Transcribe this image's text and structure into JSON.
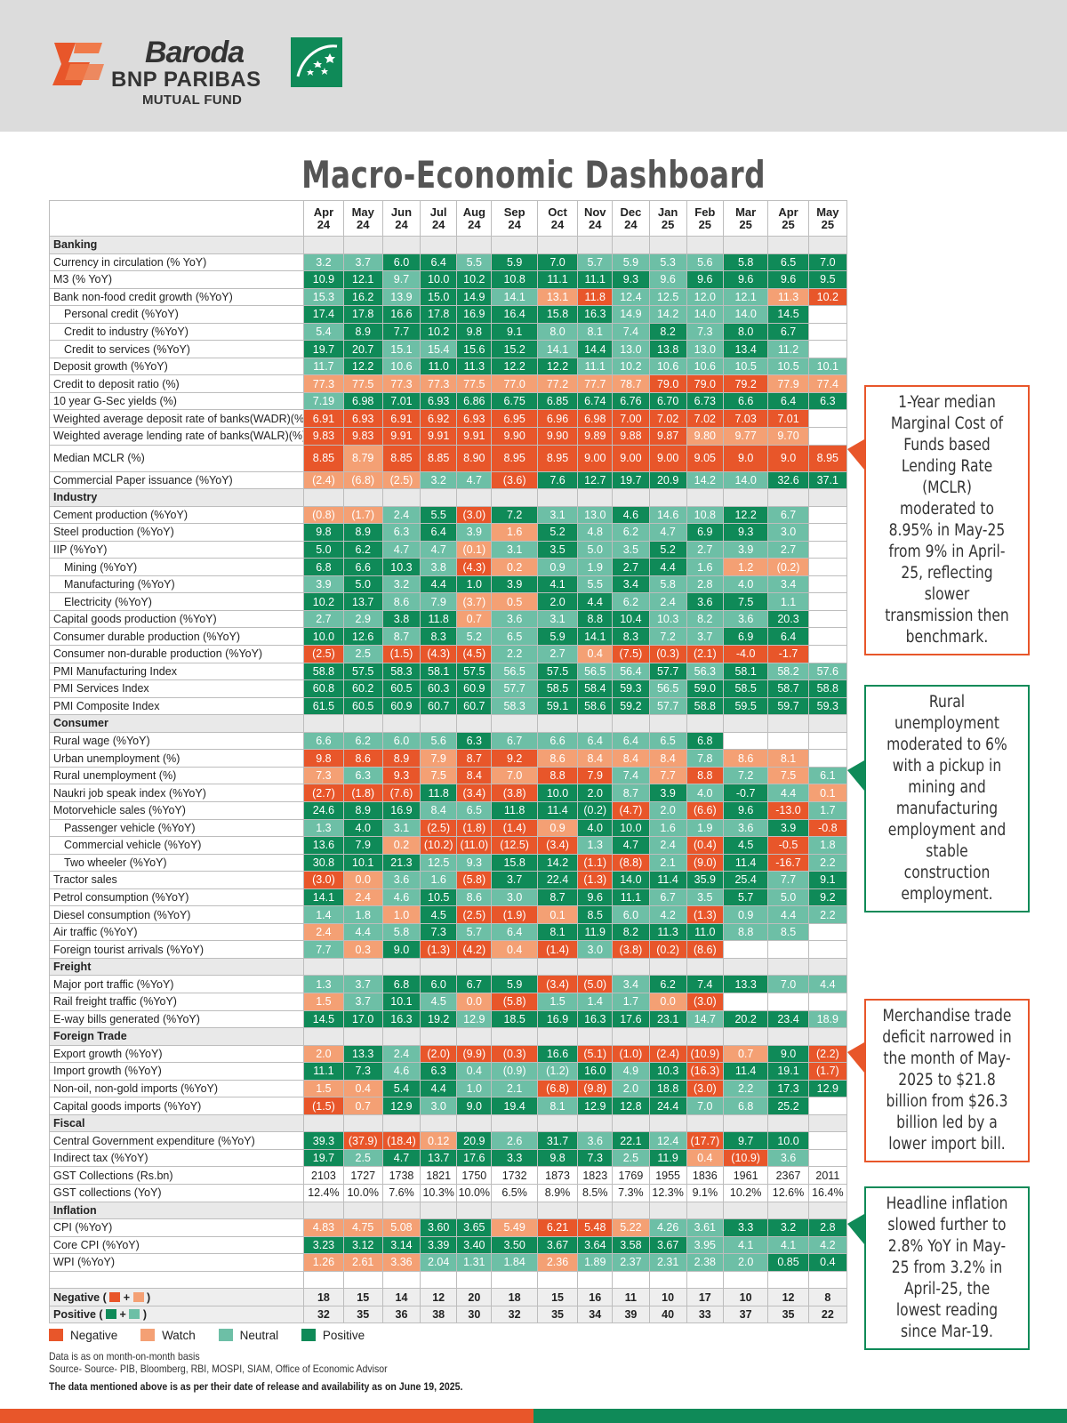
{
  "brand": {
    "line1": "Baroda",
    "line2": "BNP PARIBAS",
    "line3": "MUTUAL FUND"
  },
  "title": "Macro-Economic Dashboard",
  "colors": {
    "negative": "#e8562a",
    "watch": "#f4a074",
    "neutral": "#6dbfa6",
    "positive": "#0f8a58"
  },
  "months": [
    [
      "Apr",
      "24"
    ],
    [
      "May",
      "24"
    ],
    [
      "Jun",
      "24"
    ],
    [
      "Jul",
      "24"
    ],
    [
      "Aug",
      "24"
    ],
    [
      "Sep",
      "24"
    ],
    [
      "Oct",
      "24"
    ],
    [
      "Nov",
      "24"
    ],
    [
      "Dec",
      "24"
    ],
    [
      "Jan",
      "25"
    ],
    [
      "Feb",
      "25"
    ],
    [
      "Mar",
      "25"
    ],
    [
      "Apr",
      "25"
    ],
    [
      "May",
      "25"
    ]
  ],
  "rows": [
    {
      "s": "Banking"
    },
    {
      "l": "Currency in circulation (% YoY)",
      "v": [
        "3.2",
        "3.7",
        "6.0",
        "6.4",
        "5.5",
        "5.9",
        "7.0",
        "5.7",
        "5.9",
        "5.3",
        "5.6",
        "5.8",
        "6.5",
        "7.0"
      ],
      "c": "uuppuppuuuuppp"
    },
    {
      "l": "M3 (% YoY)",
      "v": [
        "10.9",
        "12.1",
        "9.7",
        "10.0",
        "10.2",
        "10.8",
        "11.1",
        "11.1",
        "9.3",
        "9.6",
        "9.6",
        "9.6",
        "9.6",
        "9.5"
      ],
      "c": "ppuppppppupppp"
    },
    {
      "l": "Bank non-food credit growth (%YoY)",
      "v": [
        "15.3",
        "16.2",
        "13.9",
        "15.0",
        "14.9",
        "14.1",
        "13.1",
        "11.8",
        "12.4",
        "12.5",
        "12.0",
        "12.1",
        "11.3",
        "10.2"
      ],
      "c": "upuppuwnuuuuwn"
    },
    {
      "l": "Personal credit (%YoY)",
      "i": 1,
      "v": [
        "17.4",
        "17.8",
        "16.6",
        "17.8",
        "16.9",
        "16.4",
        "15.8",
        "16.3",
        "14.9",
        "14.2",
        "14.0",
        "14.0",
        "14.5",
        ""
      ],
      "c": "ppppppppuuuupz"
    },
    {
      "l": "Credit to industry (%YoY)",
      "i": 1,
      "v": [
        "5.4",
        "8.9",
        "7.7",
        "10.2",
        "9.8",
        "9.1",
        "8.0",
        "8.1",
        "7.4",
        "8.2",
        "7.3",
        "8.0",
        "6.7",
        ""
      ],
      "c": "upppppuuupuppz"
    },
    {
      "l": "Credit to services (%YoY)",
      "i": 1,
      "v": [
        "19.7",
        "20.7",
        "15.1",
        "15.4",
        "15.6",
        "15.2",
        "14.1",
        "14.4",
        "13.0",
        "13.8",
        "13.0",
        "13.4",
        "11.2",
        ""
      ],
      "c": "ppuuppupupupuz"
    },
    {
      "l": "Deposit growth (%YoY)",
      "v": [
        "11.7",
        "12.2",
        "10.6",
        "11.0",
        "11.3",
        "12.2",
        "12.2",
        "11.1",
        "10.2",
        "10.6",
        "10.6",
        "10.5",
        "10.5",
        "10.1"
      ],
      "c": "upuppppuuuuuuu"
    },
    {
      "l": "Credit to deposit ratio (%)",
      "v": [
        "77.3",
        "77.5",
        "77.3",
        "77.3",
        "77.5",
        "77.0",
        "77.2",
        "77.7",
        "78.7",
        "79.0",
        "79.0",
        "79.2",
        "77.9",
        "77.4"
      ],
      "c": "wwwwwwwwwnnnww"
    },
    {
      "l": "10 year G-Sec yields (%)",
      "v": [
        "7.19",
        "6.98",
        "7.01",
        "6.93",
        "6.86",
        "6.75",
        "6.85",
        "6.74",
        "6.76",
        "6.70",
        "6.73",
        "6.6",
        "6.4",
        "6.3"
      ],
      "c": "uppppppppppppp"
    },
    {
      "l": "Weighted average deposit rate of banks(WADR)(%)",
      "v": [
        "6.91",
        "6.93",
        "6.91",
        "6.92",
        "6.93",
        "6.95",
        "6.96",
        "6.98",
        "7.00",
        "7.02",
        "7.02",
        "7.03",
        "7.01",
        ""
      ],
      "c": "nnnnnnnnnnnnnz"
    },
    {
      "l": "Weighted average lending rate of banks(WALR)(%)",
      "v": [
        "9.83",
        "9.83",
        "9.91",
        "9.91",
        "9.91",
        "9.90",
        "9.90",
        "9.89",
        "9.88",
        "9.87",
        "9.80",
        "9.77",
        "9.70",
        ""
      ],
      "c": "nnnnnnnnnnwwwz"
    },
    {
      "l": "Median MCLR (%)",
      "t": 1,
      "v": [
        "8.85",
        "8.79",
        "8.85",
        "8.85",
        "8.90",
        "8.95",
        "8.95",
        "9.00",
        "9.00",
        "9.00",
        "9.05",
        "9.0",
        "9.0",
        "8.95"
      ],
      "c": "nwnnnnnnnnnnnn"
    },
    {
      "l": "Commercial Paper issuance (%YoY)",
      "v": [
        "(2.4)",
        "(6.8)",
        "(2.5)",
        "3.2",
        "4.7",
        "(3.6)",
        "7.6",
        "12.7",
        "19.7",
        "20.9",
        "14.2",
        "14.0",
        "32.6",
        "37.1"
      ],
      "c": "wwwuunppppuupp"
    },
    {
      "s": "Industry"
    },
    {
      "l": "Cement production (%YoY)",
      "v": [
        "(0.8)",
        "(1.7)",
        "2.4",
        "5.5",
        "(3.0)",
        "7.2",
        "3.1",
        "13.0",
        "4.6",
        "14.6",
        "10.8",
        "12.2",
        "6.7",
        ""
      ],
      "c": "wwupnpuupuupuz"
    },
    {
      "l": "Steel production (%YoY)",
      "v": [
        "9.8",
        "8.9",
        "6.3",
        "6.4",
        "3.9",
        "1.6",
        "5.2",
        "4.8",
        "6.2",
        "4.7",
        "6.9",
        "9.3",
        "3.0",
        ""
      ],
      "c": "ppupuwpuuuppuz"
    },
    {
      "l": "IIP (%YoY)",
      "v": [
        "5.0",
        "6.2",
        "4.7",
        "4.7",
        "(0.1)",
        "3.1",
        "3.5",
        "5.0",
        "3.5",
        "5.2",
        "2.7",
        "3.9",
        "2.7",
        ""
      ],
      "c": "ppuuwupuupuuuz"
    },
    {
      "l": "Mining (%YoY)",
      "i": 1,
      "v": [
        "6.8",
        "6.6",
        "10.3",
        "3.8",
        "(4.3)",
        "0.2",
        "0.9",
        "1.9",
        "2.7",
        "4.4",
        "1.6",
        "1.2",
        "(0.2)",
        ""
      ],
      "c": "pppunwuuppuwwz"
    },
    {
      "l": "Manufacturing (%YoY)",
      "i": 1,
      "v": [
        "3.9",
        "5.0",
        "3.2",
        "4.4",
        "1.0",
        "3.9",
        "4.1",
        "5.5",
        "3.4",
        "5.8",
        "2.8",
        "4.0",
        "3.4",
        ""
      ],
      "c": "upuppppupuuuuz"
    },
    {
      "l": "Electricity (%YoY)",
      "i": 1,
      "v": [
        "10.2",
        "13.7",
        "8.6",
        "7.9",
        "(3.7)",
        "0.5",
        "2.0",
        "4.4",
        "6.2",
        "2.4",
        "3.6",
        "7.5",
        "1.1",
        ""
      ],
      "c": "ppuuwwppuuppuz"
    },
    {
      "l": "Capital goods production (%YoY)",
      "v": [
        "2.7",
        "2.9",
        "3.8",
        "11.8",
        "0.7",
        "3.6",
        "3.1",
        "8.8",
        "10.4",
        "10.3",
        "8.2",
        "3.6",
        "20.3",
        ""
      ],
      "c": "uuppwuuppuuupz"
    },
    {
      "l": "Consumer durable production (%YoY)",
      "v": [
        "10.0",
        "12.6",
        "8.7",
        "8.3",
        "5.2",
        "6.5",
        "5.9",
        "14.1",
        "8.3",
        "7.2",
        "3.7",
        "6.9",
        "6.4",
        ""
      ],
      "c": "ppupuupppuuppz"
    },
    {
      "l": "Consumer non-durable production (%YoY)",
      "v": [
        "(2.5)",
        "2.5",
        "(1.5)",
        "(4.3)",
        "(4.5)",
        "2.2",
        "2.7",
        "0.4",
        "(7.5)",
        "(0.3)",
        "(2.1)",
        "-4.0",
        "-1.7",
        ""
      ],
      "c": "nunnnuuwnnnnnz"
    },
    {
      "l": "PMI Manufacturing Index",
      "v": [
        "58.8",
        "57.5",
        "58.3",
        "58.1",
        "57.5",
        "56.5",
        "57.5",
        "56.5",
        "56.4",
        "57.7",
        "56.3",
        "58.1",
        "58.2",
        "57.6"
      ],
      "c": "pppppupuupupuu"
    },
    {
      "l": "PMI Services Index",
      "v": [
        "60.8",
        "60.2",
        "60.5",
        "60.3",
        "60.9",
        "57.7",
        "58.5",
        "58.4",
        "59.3",
        "56.5",
        "59.0",
        "58.5",
        "58.7",
        "58.8"
      ],
      "c": "pppppupppupppp"
    },
    {
      "l": "PMI Composite Index",
      "v": [
        "61.5",
        "60.5",
        "60.9",
        "60.7",
        "60.7",
        "58.3",
        "59.1",
        "58.6",
        "59.2",
        "57.7",
        "58.8",
        "59.5",
        "59.7",
        "59.3"
      ],
      "c": "pppppupppupppp"
    },
    {
      "s": "Consumer"
    },
    {
      "l": "Rural wage (%YoY)",
      "v": [
        "6.6",
        "6.2",
        "6.0",
        "5.6",
        "6.3",
        "6.7",
        "6.6",
        "6.4",
        "6.4",
        "6.5",
        "6.8",
        "",
        "",
        ""
      ],
      "c": "uuuupuuuuupzzz"
    },
    {
      "l": "Urban unemployment (%)",
      "v": [
        "9.8",
        "8.6",
        "8.9",
        "7.9",
        "8.7",
        "9.2",
        "8.6",
        "8.4",
        "8.4",
        "8.4",
        "7.8",
        "8.6",
        "8.1",
        ""
      ],
      "c": "nnnwnnwwwwuwwz"
    },
    {
      "l": "Rural unemployment (%)",
      "v": [
        "7.3",
        "6.3",
        "9.3",
        "7.5",
        "8.4",
        "7.0",
        "8.8",
        "7.9",
        "7.4",
        "7.7",
        "8.8",
        "7.2",
        "7.5",
        "6.1"
      ],
      "c": "wunwnwnnuwnuwu"
    },
    {
      "l": "Naukri job speak index (%YoY)",
      "v": [
        "(2.7)",
        "(1.8)",
        "(7.6)",
        "11.8",
        "(3.4)",
        "(3.8)",
        "10.0",
        "2.0",
        "8.7",
        "3.9",
        "4.0",
        "-0.7",
        "4.4",
        "0.1"
      ],
      "c": "nnnpnnppupupuw"
    },
    {
      "l": "Motorvehicle sales (%YoY)",
      "v": [
        "24.6",
        "8.9",
        "16.9",
        "8.4",
        "6.5",
        "11.8",
        "11.4",
        "(0.2)",
        "(4.7)",
        "2.0",
        "(6.6)",
        "9.6",
        "-13.0",
        "1.7"
      ],
      "c": "pppuupppnunpnu"
    },
    {
      "l": "Passenger vehicle (%YoY)",
      "i": 1,
      "v": [
        "1.3",
        "4.0",
        "3.1",
        "(2.5)",
        "(1.8)",
        "(1.4)",
        "0.9",
        "4.0",
        "10.0",
        "1.6",
        "1.9",
        "3.6",
        "3.9",
        "-0.8"
      ],
      "c": "upunnnwppuuupn"
    },
    {
      "l": "Commercial vehicle (%YoY)",
      "i": 1,
      "v": [
        "13.6",
        "7.9",
        "0.2",
        "(10.2)",
        "(11.0)",
        "(12.5)",
        "(3.4)",
        "1.3",
        "4.7",
        "2.4",
        "(0.4)",
        "4.5",
        "-0.5",
        "1.8"
      ],
      "c": "ppwnnnnupunpnu"
    },
    {
      "l": "Two wheeler (%YoY)",
      "i": 1,
      "v": [
        "30.8",
        "10.1",
        "21.3",
        "12.5",
        "9.3",
        "15.8",
        "14.2",
        "(1.1)",
        "(8.8)",
        "2.1",
        "(9.0)",
        "11.4",
        "-16.7",
        "2.2"
      ],
      "c": "pppuuppnnunpnu"
    },
    {
      "l": "Tractor sales",
      "v": [
        "(3.0)",
        "0.0",
        "3.6",
        "1.6",
        "(5.8)",
        "3.7",
        "22.4",
        "(1.3)",
        "14.0",
        "11.4",
        "35.9",
        "25.4",
        "7.7",
        "9.1"
      ],
      "c": "nwuunppnppppup"
    },
    {
      "l": "Petrol consumption (%YoY)",
      "v": [
        "14.1",
        "2.4",
        "4.6",
        "10.5",
        "8.6",
        "3.0",
        "8.7",
        "9.6",
        "11.1",
        "6.7",
        "3.5",
        "5.7",
        "5.0",
        "9.2"
      ],
      "c": "pwupuupppuupup"
    },
    {
      "l": "Diesel consumption (%YoY)",
      "v": [
        "1.4",
        "1.8",
        "1.0",
        "4.5",
        "(2.5)",
        "(1.9)",
        "0.1",
        "8.5",
        "6.0",
        "4.2",
        "(1.3)",
        "0.9",
        "4.4",
        "2.2"
      ],
      "c": "uuwpnnwpuunuuu"
    },
    {
      "l": "Air traffic (%YoY)",
      "v": [
        "2.4",
        "4.4",
        "5.8",
        "7.3",
        "5.7",
        "6.4",
        "8.1",
        "11.9",
        "8.2",
        "11.3",
        "11.0",
        "8.8",
        "8.5",
        ""
      ],
      "c": "wuupuupppppuuz"
    },
    {
      "l": "Foreign tourist arrivals (%YoY)",
      "v": [
        "7.7",
        "0.3",
        "9.0",
        "(1.3)",
        "(4.2)",
        "0.4",
        "(1.4)",
        "3.0",
        "(3.8)",
        "(0.2)",
        "(8.6)",
        "",
        "",
        ""
      ],
      "c": "uwpnnwnunnnzzz"
    },
    {
      "s": "Freight"
    },
    {
      "l": "Major port traffic (%YoY)",
      "v": [
        "1.3",
        "3.7",
        "6.8",
        "6.0",
        "6.7",
        "5.9",
        "(3.4)",
        "(5.0)",
        "3.4",
        "6.2",
        "7.4",
        "13.3",
        "7.0",
        "4.4"
      ],
      "c": "uuppppnnupppuu"
    },
    {
      "l": "Rail  freight traffic (%YoY)",
      "v": [
        "1.5",
        "3.7",
        "10.1",
        "4.5",
        "0.0",
        "(5.8)",
        "1.5",
        "1.4",
        "1.7",
        "0.0",
        "(3.0)",
        "",
        "",
        ""
      ],
      "c": "wupuwnuuuwnzzz"
    },
    {
      "l": "E-way bills generated (%YoY)",
      "v": [
        "14.5",
        "17.0",
        "16.3",
        "19.2",
        "12.9",
        "18.5",
        "16.9",
        "16.3",
        "17.6",
        "23.1",
        "14.7",
        "20.2",
        "23.4",
        "18.9"
      ],
      "c": "ppppupppppuppu"
    },
    {
      "s": "Foreign Trade"
    },
    {
      "l": "Export growth (%YoY)",
      "v": [
        "2.0",
        "13.3",
        "2.4",
        "(2.0)",
        "(9.9)",
        "(0.3)",
        "16.6",
        "(5.1)",
        "(1.0)",
        "(2.4)",
        "(10.9)",
        "0.7",
        "9.0",
        "(2.2)"
      ],
      "c": "wpunnnpnnnnwpn"
    },
    {
      "l": "Import growth (%YoY)",
      "v": [
        "11.1",
        "7.3",
        "4.6",
        "6.3",
        "0.4",
        "(0.9)",
        "(1.2)",
        "16.0",
        "4.9",
        "10.3",
        "(16.3)",
        "11.4",
        "19.1",
        "(1.7)"
      ],
      "c": "ppupuuupupnppn"
    },
    {
      "l": "Non-oil, non-gold imports (%YoY)",
      "v": [
        "1.5",
        "0.4",
        "5.4",
        "4.4",
        "1.0",
        "2.1",
        "(6.8)",
        "(9.8)",
        "2.0",
        "18.8",
        "(3.0)",
        "2.2",
        "17.3",
        "12.9"
      ],
      "c": "wwppuunnupnupp"
    },
    {
      "l": "Capital goods imports (%YoY)",
      "v": [
        "(1.5)",
        "0.7",
        "12.9",
        "3.0",
        "9.0",
        "19.4",
        "8.1",
        "12.9",
        "12.8",
        "24.4",
        "7.0",
        "6.8",
        "25.2",
        ""
      ],
      "c": "nwpuppupppuupz"
    },
    {
      "s": "Fiscal"
    },
    {
      "l": "Central Government expenditure (%YoY)",
      "v": [
        "39.3",
        "(37.9)",
        "(18.4)",
        "0.12",
        "20.9",
        "2.6",
        "31.7",
        "3.6",
        "22.1",
        "12.4",
        "(17.7)",
        "9.7",
        "10.0",
        ""
      ],
      "c": "pnnwpupupunppz"
    },
    {
      "l": "Indirect tax (%YoY)",
      "v": [
        "19.7",
        "2.5",
        "4.7",
        "13.7",
        "17.6",
        "3.3",
        "9.8",
        "7.3",
        "2.5",
        "11.9",
        "0.4",
        "(10.9)",
        "3.6",
        ""
      ],
      "c": "puppppppupwnuz"
    },
    {
      "l": "GST Collections (Rs.bn)",
      "v": [
        "2103",
        "1727",
        "1738",
        "1821",
        "1750",
        "1732",
        "1873",
        "1823",
        "1769",
        "1955",
        "1836",
        "1961",
        "2367",
        "2011"
      ],
      "c": "zzzzzzzzzzzzzz",
      "b": 1
    },
    {
      "l": "GST collections (YoY)",
      "v": [
        "12.4%",
        "10.0%",
        "7.6%",
        "10.3%",
        "10.0%",
        "6.5%",
        "8.9%",
        "8.5%",
        "7.3%",
        "12.3%",
        "9.1%",
        "10.2%",
        "12.6%",
        "16.4%"
      ],
      "c": "zzzzzzzzzzzzzz",
      "b": 1
    },
    {
      "s": "Inflation"
    },
    {
      "l": "CPI (%YoY)",
      "v": [
        "4.83",
        "4.75",
        "5.08",
        "3.60",
        "3.65",
        "5.49",
        "6.21",
        "5.48",
        "5.22",
        "4.26",
        "3.61",
        "3.3",
        "3.2",
        "2.8"
      ],
      "c": "wwwppwnnwuuppp"
    },
    {
      "l": "Core CPI (%YoY)",
      "v": [
        "3.23",
        "3.12",
        "3.14",
        "3.39",
        "3.40",
        "3.50",
        "3.67",
        "3.64",
        "3.58",
        "3.67",
        "3.95",
        "4.1",
        "4.1",
        "4.2"
      ],
      "c": "ppppppppppuuuu"
    },
    {
      "l": "WPI (%YoY)",
      "v": [
        "1.26",
        "2.61",
        "3.36",
        "2.04",
        "1.31",
        "1.84",
        "2.36",
        "1.89",
        "2.37",
        "2.31",
        "2.38",
        "2.0",
        "0.85",
        "0.4"
      ],
      "c": "wwwuuuwuuuuupp"
    }
  ],
  "counts": {
    "negative_label": "Negative (",
    "positive_label": "Positive (",
    "plus": "+",
    "close": ")",
    "negative": [
      "18",
      "15",
      "14",
      "12",
      "20",
      "18",
      "15",
      "16",
      "11",
      "10",
      "17",
      "10",
      "12",
      "8"
    ],
    "positive": [
      "32",
      "35",
      "36",
      "38",
      "30",
      "32",
      "35",
      "34",
      "39",
      "40",
      "33",
      "37",
      "35",
      "22"
    ]
  },
  "legend": {
    "negative": "Negative",
    "watch": "Watch",
    "neutral": "Neutral",
    "positive": "Positive"
  },
  "notes": {
    "basis": "Data is as on month-on-month basis",
    "source": "Source- Source- PIB, Bloomberg, RBI, MOSPI, SIAM, Office of Economic Advisor",
    "release": "The data mentioned above is as per their date of release and availability as on June 19, 2025."
  },
  "callouts": {
    "mclr": "1-Year median Marginal Cost of Funds based Lending Rate (MCLR) moderated to 8.95% in May-25 from 9% in April-25, reflecting slower transmission then benchmark.",
    "rural": "Rural unemployment moderated to 6% with a pickup in mining and manufacturing employment and stable construction employment.",
    "trade": "Merchandise trade deficit narrowed in the month of May-2025 to $21.8 billion from $26.3 billion led by a lower import bill.",
    "inflation": "Headline inflation slowed further to 2.8% YoY in May-25 from 3.2% in April-25, the lowest reading since Mar-19."
  }
}
